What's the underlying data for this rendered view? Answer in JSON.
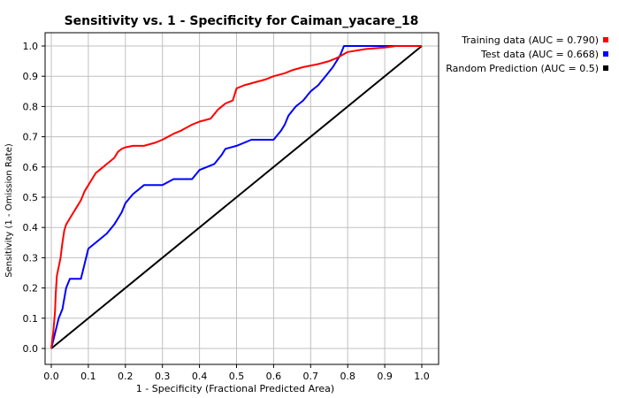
{
  "chart_data": {
    "type": "line",
    "title": "Sensitivity vs. 1 - Specificity for Caiman_yacare_18",
    "xlabel": "1 - Specificity  (Fractional Predicted Area)",
    "ylabel": "Sensitivity (1 - Omission Rate)",
    "xlim": [
      0,
      1
    ],
    "ylim": [
      0,
      1
    ],
    "grid": true,
    "legend_position": "top-right outside",
    "x_ticks": [
      "0.0",
      "0.1",
      "0.2",
      "0.3",
      "0.4",
      "0.5",
      "0.6",
      "0.7",
      "0.8",
      "0.9",
      "1.0"
    ],
    "y_ticks": [
      "0.0",
      "0.1",
      "0.2",
      "0.3",
      "0.4",
      "0.5",
      "0.6",
      "0.7",
      "0.8",
      "0.9",
      "1.0"
    ],
    "series": [
      {
        "name": "Training data (AUC = 0.790)",
        "color": "#ff0000",
        "x": [
          0,
          0.005,
          0.01,
          0.012,
          0.015,
          0.02,
          0.025,
          0.03,
          0.035,
          0.04,
          0.045,
          0.05,
          0.06,
          0.07,
          0.08,
          0.09,
          0.1,
          0.11,
          0.12,
          0.13,
          0.14,
          0.15,
          0.16,
          0.17,
          0.18,
          0.19,
          0.2,
          0.22,
          0.25,
          0.28,
          0.3,
          0.33,
          0.35,
          0.38,
          0.4,
          0.43,
          0.45,
          0.47,
          0.49,
          0.5,
          0.52,
          0.55,
          0.58,
          0.6,
          0.63,
          0.65,
          0.68,
          0.72,
          0.75,
          0.77,
          0.8,
          0.85,
          0.9,
          0.93,
          0.96,
          1.0
        ],
        "y": [
          0,
          0.05,
          0.12,
          0.18,
          0.24,
          0.27,
          0.3,
          0.35,
          0.39,
          0.41,
          0.42,
          0.43,
          0.45,
          0.47,
          0.49,
          0.52,
          0.54,
          0.56,
          0.58,
          0.59,
          0.6,
          0.61,
          0.62,
          0.63,
          0.65,
          0.66,
          0.665,
          0.67,
          0.67,
          0.68,
          0.69,
          0.71,
          0.72,
          0.74,
          0.75,
          0.76,
          0.79,
          0.81,
          0.82,
          0.86,
          0.87,
          0.88,
          0.89,
          0.9,
          0.91,
          0.92,
          0.93,
          0.94,
          0.95,
          0.96,
          0.98,
          0.99,
          0.995,
          1.0,
          1.0,
          1.0
        ]
      },
      {
        "name": "Test data (AUC = 0.668)",
        "color": "#0000ff",
        "x": [
          0,
          0.01,
          0.02,
          0.03,
          0.04,
          0.05,
          0.08,
          0.09,
          0.1,
          0.13,
          0.15,
          0.17,
          0.19,
          0.2,
          0.22,
          0.25,
          0.3,
          0.33,
          0.38,
          0.4,
          0.44,
          0.46,
          0.47,
          0.5,
          0.54,
          0.6,
          0.62,
          0.63,
          0.64,
          0.66,
          0.68,
          0.7,
          0.72,
          0.74,
          0.76,
          0.78,
          0.79,
          0.85,
          0.9,
          1.0
        ],
        "y": [
          0,
          0.05,
          0.1,
          0.13,
          0.2,
          0.23,
          0.23,
          0.28,
          0.33,
          0.36,
          0.38,
          0.41,
          0.45,
          0.48,
          0.51,
          0.54,
          0.54,
          0.56,
          0.56,
          0.59,
          0.61,
          0.64,
          0.66,
          0.67,
          0.69,
          0.69,
          0.72,
          0.74,
          0.77,
          0.8,
          0.82,
          0.85,
          0.87,
          0.9,
          0.93,
          0.97,
          1.0,
          1.0,
          1.0,
          1.0
        ]
      },
      {
        "name": "Random Prediction (AUC = 0.5)",
        "color": "#000000",
        "x": [
          0,
          1
        ],
        "y": [
          0,
          1
        ]
      }
    ]
  }
}
